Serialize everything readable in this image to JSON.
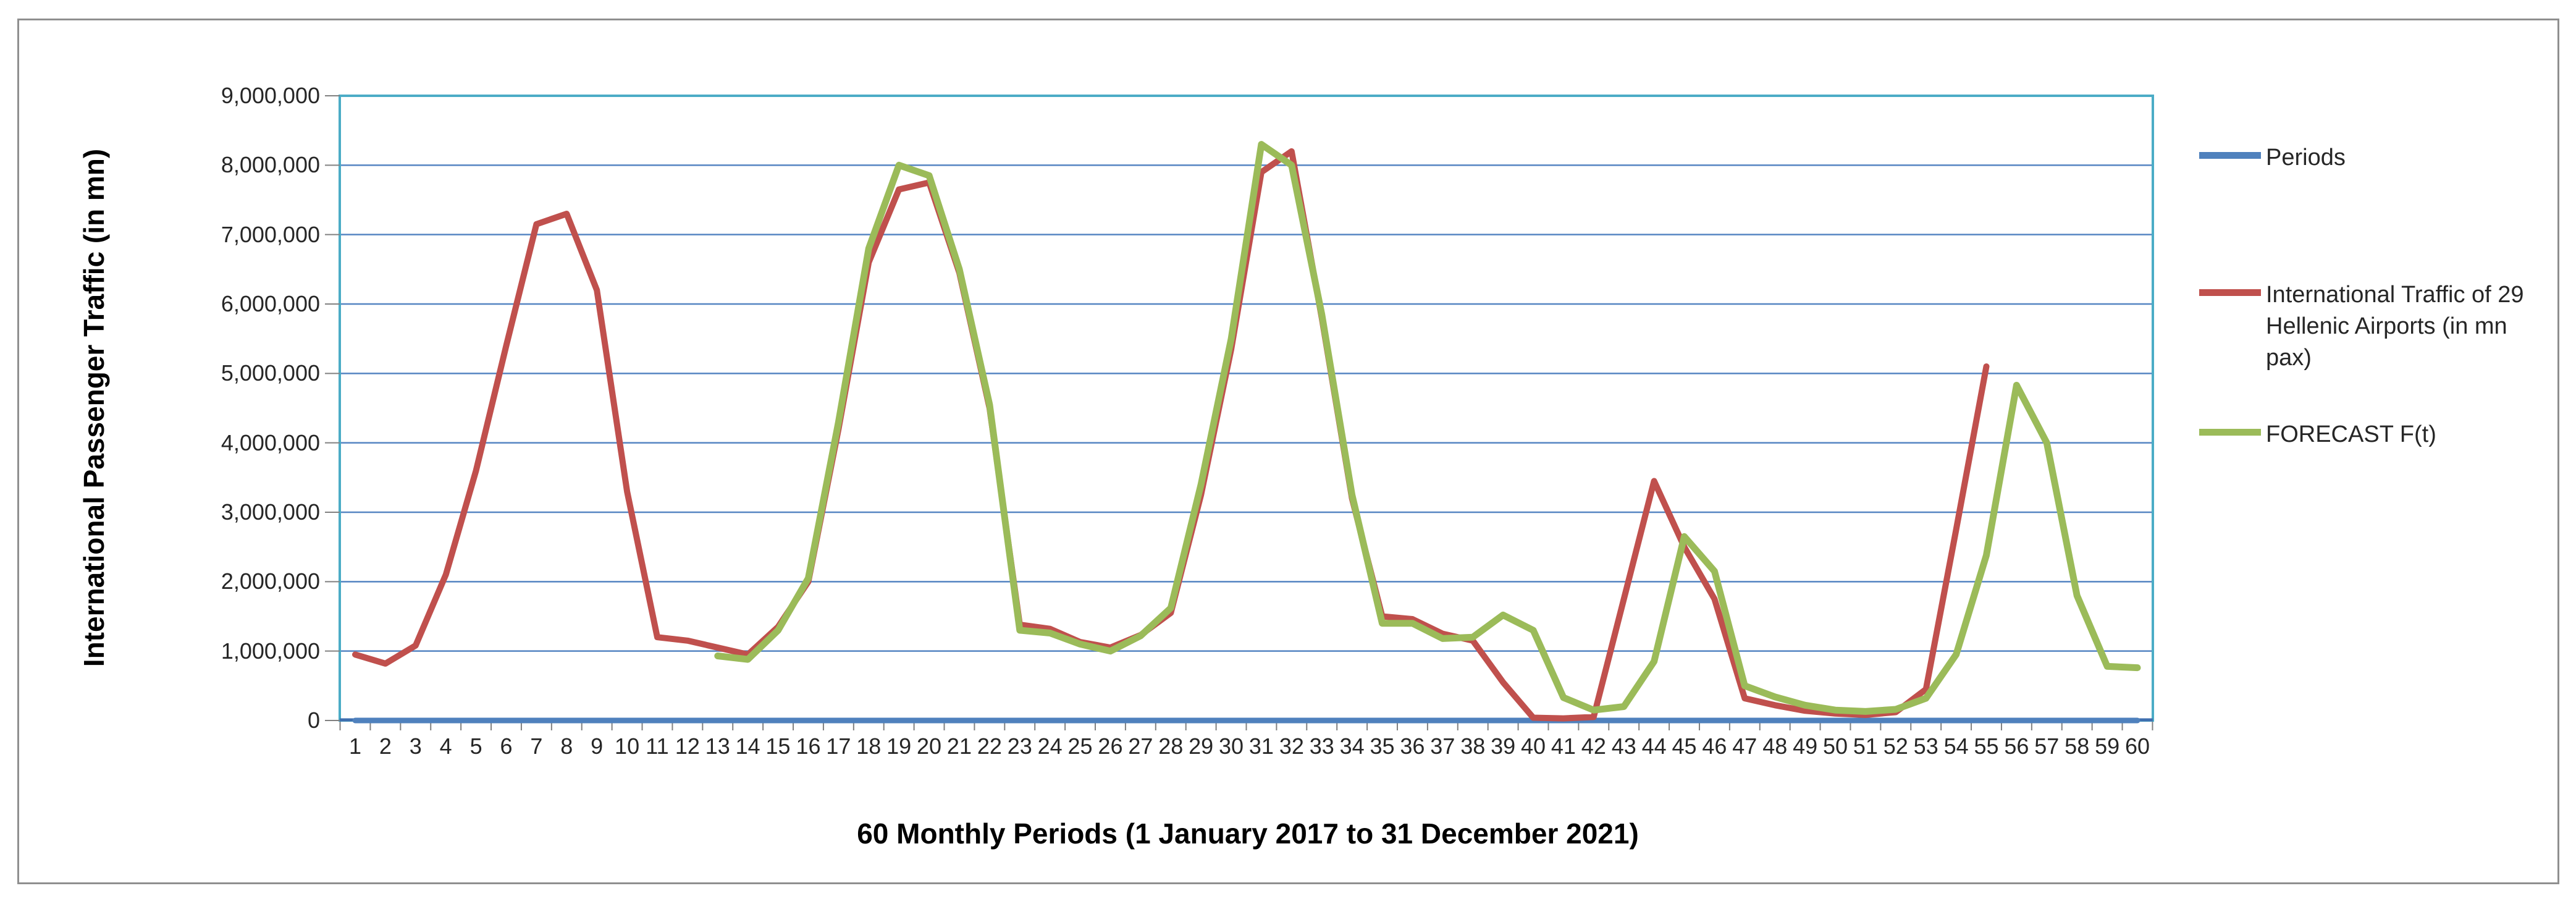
{
  "figure": {
    "background": "#FFFFFF",
    "border_color": "#8F8F8F"
  },
  "chart_data": {
    "type": "line",
    "title": "",
    "xlabel": "60 Monthly Periods (1 January 2017 to 31 December 2021)",
    "ylabel": "International Passenger Traffic (in mn)",
    "x": [
      1,
      2,
      3,
      4,
      5,
      6,
      7,
      8,
      9,
      10,
      11,
      12,
      13,
      14,
      15,
      16,
      17,
      18,
      19,
      20,
      21,
      22,
      23,
      24,
      25,
      26,
      27,
      28,
      29,
      30,
      31,
      32,
      33,
      34,
      35,
      36,
      37,
      38,
      39,
      40,
      41,
      42,
      43,
      44,
      45,
      46,
      47,
      48,
      49,
      50,
      51,
      52,
      53,
      54,
      55,
      56,
      57,
      58,
      59,
      60
    ],
    "ylim": [
      0,
      9000000
    ],
    "ytick_step": 1000000,
    "ytick_labels": [
      "0",
      "1,000,000",
      "2,000,000",
      "3,000,000",
      "4,000,000",
      "5,000,000",
      "6,000,000",
      "7,000,000",
      "8,000,000",
      "9,000,000"
    ],
    "grid": true,
    "legend_position": "right",
    "style": {
      "plot_border": "#4BACC6",
      "gridline": "#5585C2",
      "axis_blue": "#3F6FAF",
      "tick_color": "#808080",
      "text_color": "#262626"
    },
    "series": [
      {
        "name": "Periods",
        "color": "#4F81BD",
        "start": 1,
        "values": [
          1,
          2,
          3,
          4,
          5,
          6,
          7,
          8,
          9,
          10,
          11,
          12,
          13,
          14,
          15,
          16,
          17,
          18,
          19,
          20,
          21,
          22,
          23,
          24,
          25,
          26,
          27,
          28,
          29,
          30,
          31,
          32,
          33,
          34,
          35,
          36,
          37,
          38,
          39,
          40,
          41,
          42,
          43,
          44,
          45,
          46,
          47,
          48,
          49,
          50,
          51,
          52,
          53,
          54,
          55,
          56,
          57,
          58,
          59,
          60
        ]
      },
      {
        "name": "International Traffic of 29 Hellenic Airports (in mn pax)",
        "color": "#C0504D",
        "start": 1,
        "values": [
          950000,
          820000,
          1080000,
          2100000,
          3600000,
          5400000,
          7150000,
          7300000,
          6200000,
          3300000,
          1200000,
          1150000,
          1050000,
          950000,
          1350000,
          2000000,
          4200000,
          6600000,
          7650000,
          7750000,
          6450000,
          4500000,
          1380000,
          1320000,
          1130000,
          1050000,
          1230000,
          1550000,
          3250000,
          5350000,
          7900000,
          8200000,
          5800000,
          3200000,
          1500000,
          1460000,
          1250000,
          1150000,
          550000,
          40000,
          30000,
          50000,
          1750000,
          3450000,
          2500000,
          1750000,
          320000,
          220000,
          140000,
          100000,
          80000,
          120000,
          450000,
          2750000,
          5100000
        ]
      },
      {
        "name": "FORECAST F(t)",
        "color": "#9BBB59",
        "start": 13,
        "values": [
          930000,
          880000,
          1300000,
          2050000,
          4300000,
          6800000,
          8000000,
          7850000,
          6500000,
          4550000,
          1300000,
          1260000,
          1100000,
          1000000,
          1220000,
          1620000,
          3400000,
          5500000,
          8300000,
          8000000,
          5850000,
          3250000,
          1400000,
          1400000,
          1180000,
          1200000,
          1520000,
          1300000,
          330000,
          150000,
          200000,
          850000,
          2650000,
          2150000,
          500000,
          340000,
          220000,
          150000,
          130000,
          160000,
          320000,
          950000,
          2380000,
          4830000,
          4000000,
          1800000,
          780000,
          760000
        ]
      }
    ]
  }
}
